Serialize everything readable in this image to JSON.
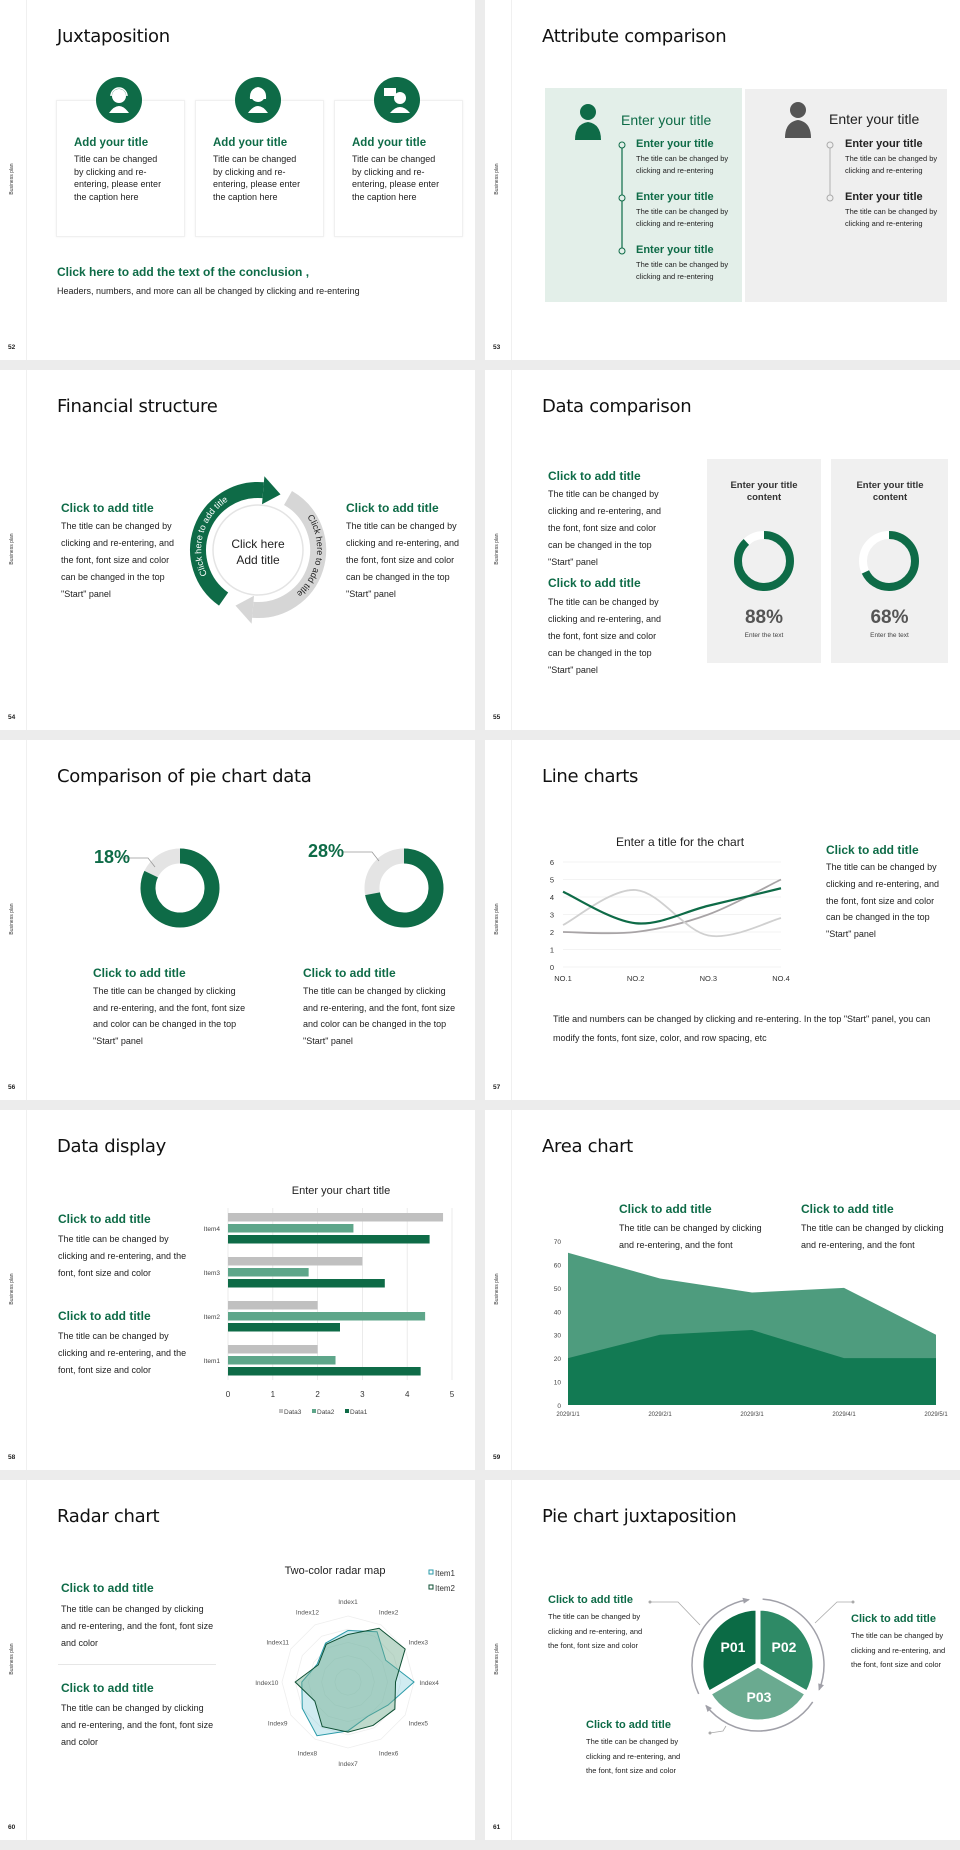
{
  "side_label": "Business plan",
  "colors": {
    "green": "#0e6b47",
    "green_mid": "#4e9c7e",
    "green_light": "#6aaa90",
    "gray": "#c8c8c8"
  },
  "s52": {
    "page": "52",
    "title": "Juxtaposition",
    "cards": [
      {
        "icon": "headset-person-icon",
        "title": "Add your title",
        "text": "Title can be changed by clicking and re-entering, please enter the caption here"
      },
      {
        "icon": "woman-person-icon",
        "title": "Add your title",
        "text": "Title can be changed by clicking and re-entering, please enter the caption here"
      },
      {
        "icon": "speech-person-icon",
        "title": "Add your title",
        "text": "Title can be changed by clicking and re-entering, please enter the caption here"
      }
    ],
    "conclusion_title": "Click here to add the text of the conclusion ,",
    "conclusion_text": "Headers, numbers, and more can all be changed by clicking and re-entering"
  },
  "s53": {
    "page": "53",
    "title": "Attribute comparison",
    "left": {
      "title": "Enter your title",
      "items": [
        {
          "title": "Enter your title",
          "text": "The title can be changed by clicking and re-entering"
        },
        {
          "title": "Enter your title",
          "text": "The title can be changed by clicking and re-entering"
        },
        {
          "title": "Enter your title",
          "text": "The title can be changed by clicking and re-entering"
        }
      ]
    },
    "right": {
      "title": "Enter your title",
      "items": [
        {
          "title": "Enter your title",
          "text": "The title can be changed by clicking and re-entering"
        },
        {
          "title": "Enter your title",
          "text": "The title can be changed by clicking and re-entering"
        }
      ]
    }
  },
  "s54": {
    "page": "54",
    "title": "Financial structure",
    "left": {
      "title": "Click to add title",
      "text": "The title can be changed by clicking and re-entering, and the font, font size and color can be changed in the top \"Start\" panel"
    },
    "right": {
      "title": "Click to add title",
      "text": "The title can be changed by clicking and re-entering, and the font, font size and color can be changed in the top \"Start\" panel"
    },
    "arc_green": "Click here to add title",
    "arc_gray": "Click here to add title",
    "center_1": "Click here",
    "center_2": "Add title"
  },
  "s55": {
    "page": "55",
    "title": "Data comparison",
    "blocks": [
      {
        "title": "Click to add title",
        "text": "The title can be changed by clicking and re-entering, and the font, font size and color can be changed in the top \"Start\" panel"
      },
      {
        "title": "Click to add title",
        "text": "The title can be changed by clicking and re-entering, and the font, font size and color can be changed in the top \"Start\" panel"
      }
    ],
    "cards": [
      {
        "title": "Enter your title content",
        "percent": 88,
        "label": "88%",
        "caption": "Enter the text"
      },
      {
        "title": "Enter your title content",
        "percent": 68,
        "label": "68%",
        "caption": "Enter the text"
      }
    ]
  },
  "s56": {
    "page": "56",
    "title": "Comparison of pie chart data",
    "pies": [
      {
        "percent": 18,
        "label": "18%",
        "title": "Click to add title",
        "text": "The title can be changed by clicking and re-entering, and the font, font size and color can be changed in the top \"Start\" panel"
      },
      {
        "percent": 28,
        "label": "28%",
        "title": "Click to add title",
        "text": "The title can be changed by clicking and re-entering, and the font, font size and color can be changed in the top \"Start\" panel"
      }
    ]
  },
  "s57": {
    "page": "57",
    "title": "Line charts",
    "side_title": "Click to add title",
    "side_text": "The title can be changed by clicking and re-entering, and the font, font size and color can be changed in the top \"Start\" panel",
    "bottom_text": "Title and numbers can be changed by clicking and re-entering. In the top \"Start\" panel, you can modify the fonts, font size, color, and row spacing, etc"
  },
  "s58": {
    "page": "58",
    "title": "Data display",
    "blocks": [
      {
        "title": "Click to add title",
        "text": "The title can be changed by clicking and re-entering, and the font, font size and color"
      },
      {
        "title": "Click to add title",
        "text": "The title can be changed by clicking and re-entering, and the font, font size and color"
      }
    ]
  },
  "s59": {
    "page": "59",
    "title": "Area chart",
    "blocks": [
      {
        "title": "Click to add title",
        "text": "The title can be changed by clicking and re-entering, and the font"
      },
      {
        "title": "Click to add title",
        "text": "The title can be changed by clicking and re-entering, and the font"
      }
    ]
  },
  "s60": {
    "page": "60",
    "title": "Radar chart",
    "blocks": [
      {
        "title": "Click to add title",
        "text": "The title can be changed by clicking and re-entering, and the font, font size and color"
      },
      {
        "title": "Click to add title",
        "text": "The title can be changed by clicking and re-entering, and the font, font size and color"
      }
    ]
  },
  "s61": {
    "page": "61",
    "title": "Pie chart juxtaposition",
    "slices": [
      "P01",
      "P02",
      "P03"
    ],
    "blocks": [
      {
        "title": "Click to add title",
        "text": "The title can be changed by clicking and re-entering, and the font, font size and color"
      },
      {
        "title": "Click to add title",
        "text": "The title can be changed by clicking and re-entering, and the font, font size and color"
      },
      {
        "title": "Click to add title",
        "text": "The title can be changed by clicking and re-entering, and the font, font size and color"
      }
    ]
  },
  "chart_data": [
    {
      "type": "line",
      "title": "Enter a title for the chart",
      "categories": [
        "NO.1",
        "NO.2",
        "NO.3",
        "NO.4"
      ],
      "ylim": [
        0,
        6
      ],
      "yticks": [
        0,
        1,
        2,
        3,
        4,
        5,
        6
      ],
      "grid": true,
      "smooth": true,
      "series": [
        {
          "values": [
            4.3,
            2.5,
            3.5,
            4.5
          ],
          "color": "#0e6b47"
        },
        {
          "values": [
            2.4,
            4.4,
            1.8,
            2.8
          ],
          "color": "#d0d0d0"
        },
        {
          "values": [
            2.0,
            2.0,
            3.0,
            5.0
          ],
          "color": "#a8a4a6"
        }
      ]
    },
    {
      "type": "bar",
      "orientation": "horizontal",
      "title": "Enter your chart title",
      "categories": [
        "Item1",
        "Item2",
        "Item3",
        "Item4"
      ],
      "xlim": [
        0,
        5
      ],
      "xticks": [
        0,
        1,
        2,
        3,
        4,
        5
      ],
      "grid": true,
      "legend": "bottom",
      "series": [
        {
          "name": "Data3",
          "values": [
            2,
            2,
            3,
            4.8
          ],
          "color": "#c0c0c0"
        },
        {
          "name": "Data2",
          "values": [
            2.4,
            4.4,
            1.8,
            2.8
          ],
          "color": "#5ea68a"
        },
        {
          "name": "Data1",
          "values": [
            4.3,
            2.5,
            3.5,
            4.5
          ],
          "color": "#0e6b47"
        }
      ]
    },
    {
      "type": "area",
      "categories": [
        "2029/1/1",
        "2029/2/1",
        "2029/3/1",
        "2029/4/1",
        "2029/5/1"
      ],
      "ylim": [
        0,
        70
      ],
      "yticks": [
        0,
        10,
        20,
        30,
        40,
        50,
        60,
        70
      ],
      "grid": false,
      "series": [
        {
          "values": [
            65,
            54,
            48,
            50,
            30
          ],
          "color": "#4e9c7e"
        },
        {
          "values": [
            20,
            30,
            32,
            20,
            20
          ],
          "color": "#127a53"
        }
      ]
    },
    {
      "type": "radar",
      "title": "Two-color radar map",
      "legend": "top-right",
      "rmax": 5,
      "categories": [
        "Index1",
        "Index2",
        "Index3",
        "Index4",
        "Index5",
        "Index6",
        "Index7",
        "Index8",
        "Index9",
        "Index10",
        "Index11",
        "Index12"
      ],
      "series": [
        {
          "name": "Item1",
          "values": [
            3.9,
            4.4,
            3.3,
            5.0,
            3.5,
            3.0,
            3.7,
            4.7,
            4.0,
            3.5,
            2.7,
            3.4
          ],
          "color": "#2a9aa8"
        },
        {
          "name": "Item2",
          "values": [
            3.6,
            4.7,
            5.0,
            3.6,
            4.1,
            3.8,
            3.8,
            3.9,
            2.9,
            4.0,
            2.6,
            3.3
          ],
          "color": "#0d4f33"
        }
      ]
    },
    {
      "type": "pie",
      "categories": [
        "P01",
        "P02",
        "P03"
      ],
      "values": [
        1,
        1,
        1
      ],
      "colors": [
        "#0b6b45",
        "#2e8a66",
        "#6aaa90"
      ]
    }
  ]
}
